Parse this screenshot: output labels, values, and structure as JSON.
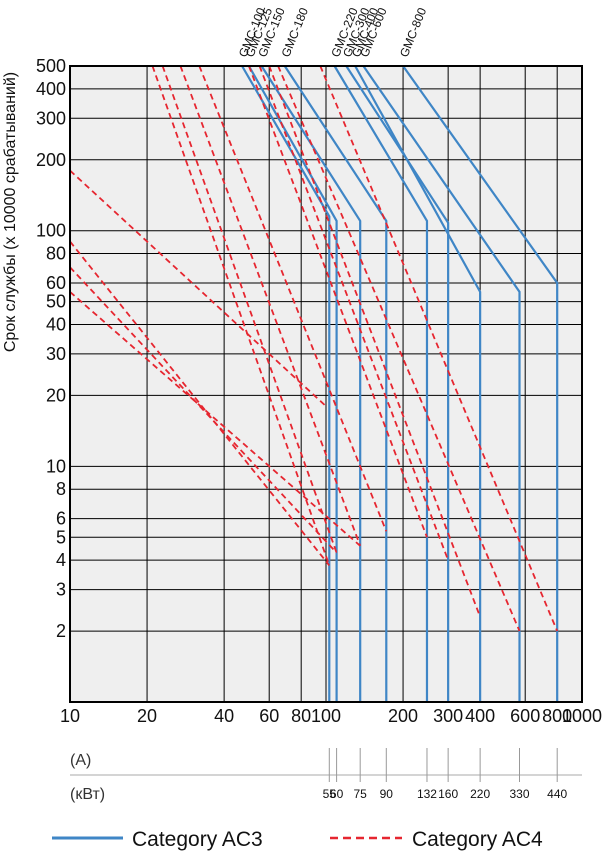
{
  "chart_data": {
    "type": "line",
    "title": "",
    "ylabel": "Срок службы (x 10000 срабатываний)",
    "xlabel": "",
    "x_scale": "log",
    "y_scale": "log",
    "xlim": [
      10,
      1000
    ],
    "ylim": [
      1,
      500
    ],
    "grid": true,
    "x_ticks": [
      {
        "value": 10,
        "label": "10"
      },
      {
        "value": 20,
        "label": "20"
      },
      {
        "value": 40,
        "label": "40"
      },
      {
        "value": 60,
        "label": "60"
      },
      {
        "value": 80,
        "label": "80"
      },
      {
        "value": 100,
        "label": "100"
      },
      {
        "value": 200,
        "label": "200"
      },
      {
        "value": 300,
        "label": "300"
      },
      {
        "value": 400,
        "label": "400"
      },
      {
        "value": 600,
        "label": "600"
      },
      {
        "value": 800,
        "label": "800"
      },
      {
        "value": 1000,
        "label": "1000"
      }
    ],
    "y_ticks": [
      {
        "value": 2,
        "label": "2"
      },
      {
        "value": 3,
        "label": "3"
      },
      {
        "value": 4,
        "label": "4"
      },
      {
        "value": 5,
        "label": "5"
      },
      {
        "value": 6,
        "label": "6"
      },
      {
        "value": 8,
        "label": "8"
      },
      {
        "value": 10,
        "label": "10"
      },
      {
        "value": 20,
        "label": "20"
      },
      {
        "value": 30,
        "label": "30"
      },
      {
        "value": 40,
        "label": "40"
      },
      {
        "value": 50,
        "label": "50"
      },
      {
        "value": 60,
        "label": "60"
      },
      {
        "value": 80,
        "label": "80"
      },
      {
        "value": 100,
        "label": "100"
      },
      {
        "value": 200,
        "label": "200"
      },
      {
        "value": 300,
        "label": "300"
      },
      {
        "value": 400,
        "label": "400"
      },
      {
        "value": 500,
        "label": "500"
      }
    ],
    "models": [
      {
        "name": "GMC-100",
        "ac3_start": 47,
        "ac3_end": 103,
        "ac3_knee": 115,
        "ac4_start": 21,
        "ac4_end": 103,
        "ac4_low": 3.8
      },
      {
        "name": "GMC-125",
        "ac3_start": 50,
        "ac3_end": 110,
        "ac3_knee": 110,
        "ac4_start": 23,
        "ac4_end": 110,
        "ac4_low": 4.3
      },
      {
        "name": "GMC-150",
        "ac3_start": 56,
        "ac3_end": 136,
        "ac3_knee": 110,
        "ac4_start": 27,
        "ac4_end": 136,
        "ac4_low": 4.6
      },
      {
        "name": "GMC-180",
        "ac3_start": 69,
        "ac3_end": 172,
        "ac3_knee": 110,
        "ac4_start": 32,
        "ac4_end": 172,
        "ac4_low": 5.3
      },
      {
        "name": "GMC-220",
        "ac3_start": 108,
        "ac3_end": 248,
        "ac3_knee": 110,
        "ac4_start": 50,
        "ac4_end": 248,
        "ac4_low": 5.0
      },
      {
        "name": "GMC-300",
        "ac3_start": 120,
        "ac3_end": 300,
        "ac3_knee": 108,
        "ac4_start": 55,
        "ac4_end": 300,
        "ac4_low": 4.0
      },
      {
        "name": "GMC-400",
        "ac3_start": 130,
        "ac3_end": 400,
        "ac3_knee": 55,
        "ac4_start": 60,
        "ac4_end": 400,
        "ac4_low": 2.3
      },
      {
        "name": "GMC-600",
        "ac3_start": 140,
        "ac3_end": 570,
        "ac3_knee": 55,
        "ac4_start": 65,
        "ac4_end": 570,
        "ac4_low": 2.0
      },
      {
        "name": "GMC-800",
        "ac3_start": 200,
        "ac3_end": 800,
        "ac3_knee": 60,
        "ac4_start": 95,
        "ac4_end": 800,
        "ac4_low": 2.0
      }
    ],
    "current_scale": {
      "label_a": "(A)",
      "label_kw": "(кВт)",
      "ticks": [
        {
          "a": 103,
          "kw": "55"
        },
        {
          "a": 110,
          "kw": "60"
        },
        {
          "a": 136,
          "kw": "75"
        },
        {
          "a": 172,
          "kw": "90"
        },
        {
          "a": 248,
          "kw": "132"
        },
        {
          "a": 300,
          "kw": "160"
        },
        {
          "a": 400,
          "kw": "220"
        },
        {
          "a": 570,
          "kw": "330"
        },
        {
          "a": 800,
          "kw": "440"
        }
      ]
    },
    "legend": [
      {
        "name": "Category AC3",
        "style": "solid",
        "color": "#3f86c6"
      },
      {
        "name": "Category AC4",
        "style": "dashed",
        "color": "#e62630"
      }
    ],
    "legend_position": "bottom",
    "colors": {
      "ac3": "#3f86c6",
      "ac4": "#e62630",
      "plot_bg": "#efefef",
      "grid": "#000000"
    }
  }
}
